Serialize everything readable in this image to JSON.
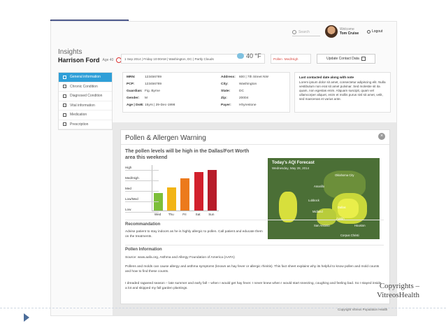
{
  "header": {
    "search_placeholder": "Search",
    "user_label": "Welcome",
    "user_name": "Tom Cruise",
    "logout_label": "Logout"
  },
  "page": {
    "section": "Insights",
    "patient_name": "Harrison Ford",
    "patient_meta": "Age 40"
  },
  "visit": {
    "info": "1 Sep 2014 | Friday 10:00AM | Washington, DC | Partly Clouds",
    "temperature": "40 °F",
    "pollen_label": "Pollen",
    "pollen_level": "Med/High",
    "update_button": "Update Contact Data"
  },
  "sidebar": {
    "items": [
      {
        "label": "General information",
        "icon": "info-icon"
      },
      {
        "label": "Chronic Condition",
        "icon": "user-icon"
      },
      {
        "label": "Diagnosed Condition",
        "icon": "clipboard-icon"
      },
      {
        "label": "Vital information",
        "icon": "heart-icon"
      },
      {
        "label": "Medication",
        "icon": "pill-icon"
      },
      {
        "label": "Prescription",
        "icon": "rx-icon"
      }
    ]
  },
  "demographics": {
    "left": [
      {
        "k": "MRN:",
        "v": "123456789"
      },
      {
        "k": "PCP:",
        "v": "123456789"
      },
      {
        "k": "Guardian:",
        "v": "Fig. Byrne"
      },
      {
        "k": "Gender:",
        "v": "M"
      },
      {
        "k": "Age | DoB:",
        "v": "15yrs | 29-Dec-1998"
      }
    ],
    "right": [
      {
        "k": "Address:",
        "v": "600 | 7th Street NW"
      },
      {
        "k": "City:",
        "v": "Washington"
      },
      {
        "k": "State:",
        "v": "DC"
      },
      {
        "k": "Zip:",
        "v": "20004"
      },
      {
        "k": "Payer:",
        "v": "Hhyrestone"
      }
    ]
  },
  "contact_note": {
    "title": "Last contacted date along with note",
    "body": "Lorem ipsum dolor sit amet, consectetur adipiscing elit. Nulla vestibulum non erat sit amet pulvinar. Sed molestie sit ita quam, non egestas enim. Aliquam suscipit, quam vel ullamcorper aliquet, enim et mollis purus nisl sit amet, velit, sed maecenas et varius ante."
  },
  "pollen_panel": {
    "title": "Pollen & Allergen Warning",
    "warning": "The pollen levels will be high in the Dallas/Fort Worth area this weekend",
    "recommendation_title": "Recommandation",
    "recommendation_text": "Advise patient to stay indoors as he is highly allergic to pollen. Call patient and educate them on the treatments.",
    "info_title": "Pollen Information",
    "source": "Source: www.aafa.org, Asthma and Allergy Foundation of America (AAFA)",
    "info_text": "Pollens and molds can cause allergy and asthma symptoms (known as hay fever or allergic rhinitis). This fact sheet explains why its helpful to know pollen and mold counts and how to find these counts.",
    "quote": "I dreaded ragweed season – late summer and early fall – when I would get hay fever. I never knew when I would start sneezing, coughing and feeling bad. So I stayed inside a lot and skipped my fall garden plantings."
  },
  "pollen_chart": {
    "levels": [
      "High",
      "Med/High",
      "Med",
      "Low/Med",
      "Low"
    ],
    "days": [
      "Wed",
      "Thu",
      "Fri",
      "Sat",
      "Sun"
    ],
    "values": [
      1.7,
      2.3,
      3.2,
      3.8,
      4.0
    ],
    "colors": [
      "#7dbf3a",
      "#f2b415",
      "#ec7a1c",
      "#d2202c",
      "#b71c2a"
    ]
  },
  "map": {
    "title": "Today's AQI Forecast",
    "subtitle": "Wednesday, May 28, 2014",
    "cities": [
      "Amarillo",
      "Lubbock",
      "Midland",
      "Dallas",
      "Austin",
      "San Antonio",
      "Houston",
      "Corpus Christi",
      "Oklahoma City"
    ]
  },
  "footer": {
    "copyright": "Copyrights – VitreosHealth",
    "note": "Copyright Vitreos Population Health"
  }
}
